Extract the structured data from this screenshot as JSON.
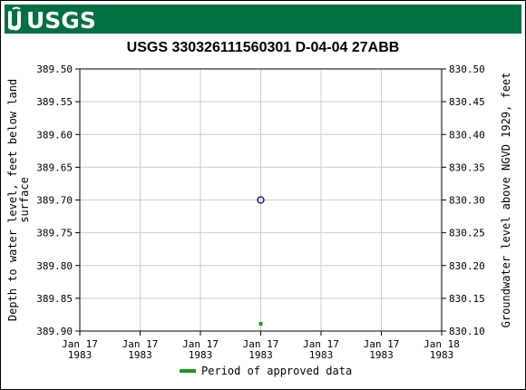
{
  "header": {
    "logo_text": "USGS",
    "banner_color": "#006f41"
  },
  "chart_data": {
    "type": "scatter",
    "title": "USGS 330326111560301 D-04-04 27ABB",
    "ylabel_left_lines": [
      "Depth to water level, feet below land",
      "surface"
    ],
    "ylabel_right": "Groundwater level above NGVD 1929, feet",
    "y_left_ticks": [
      "389.50",
      "389.55",
      "389.60",
      "389.65",
      "389.70",
      "389.75",
      "389.80",
      "389.85",
      "389.90"
    ],
    "y_right_ticks": [
      "830.50",
      "830.45",
      "830.40",
      "830.35",
      "830.30",
      "830.25",
      "830.20",
      "830.15",
      "830.10"
    ],
    "ylim_left": [
      389.5,
      389.9
    ],
    "x_ticks": [
      [
        "Jan 17",
        "1983"
      ],
      [
        "Jan 17",
        "1983"
      ],
      [
        "Jan 17",
        "1983"
      ],
      [
        "Jan 17",
        "1983"
      ],
      [
        "Jan 17",
        "1983"
      ],
      [
        "Jan 17",
        "1983"
      ],
      [
        "Jan 18",
        "1983"
      ]
    ],
    "points": [
      {
        "x": "1983-01-17 12:00",
        "depth": 389.7,
        "marker": "open-circle",
        "color": "#00008b"
      }
    ],
    "approved_period_markers": [
      {
        "x": "1983-01-17 12:00",
        "color": "#1a9b1a"
      }
    ],
    "legend": [
      {
        "label": "Period of approved data",
        "color": "#1a9b1a"
      }
    ],
    "grid": true
  }
}
